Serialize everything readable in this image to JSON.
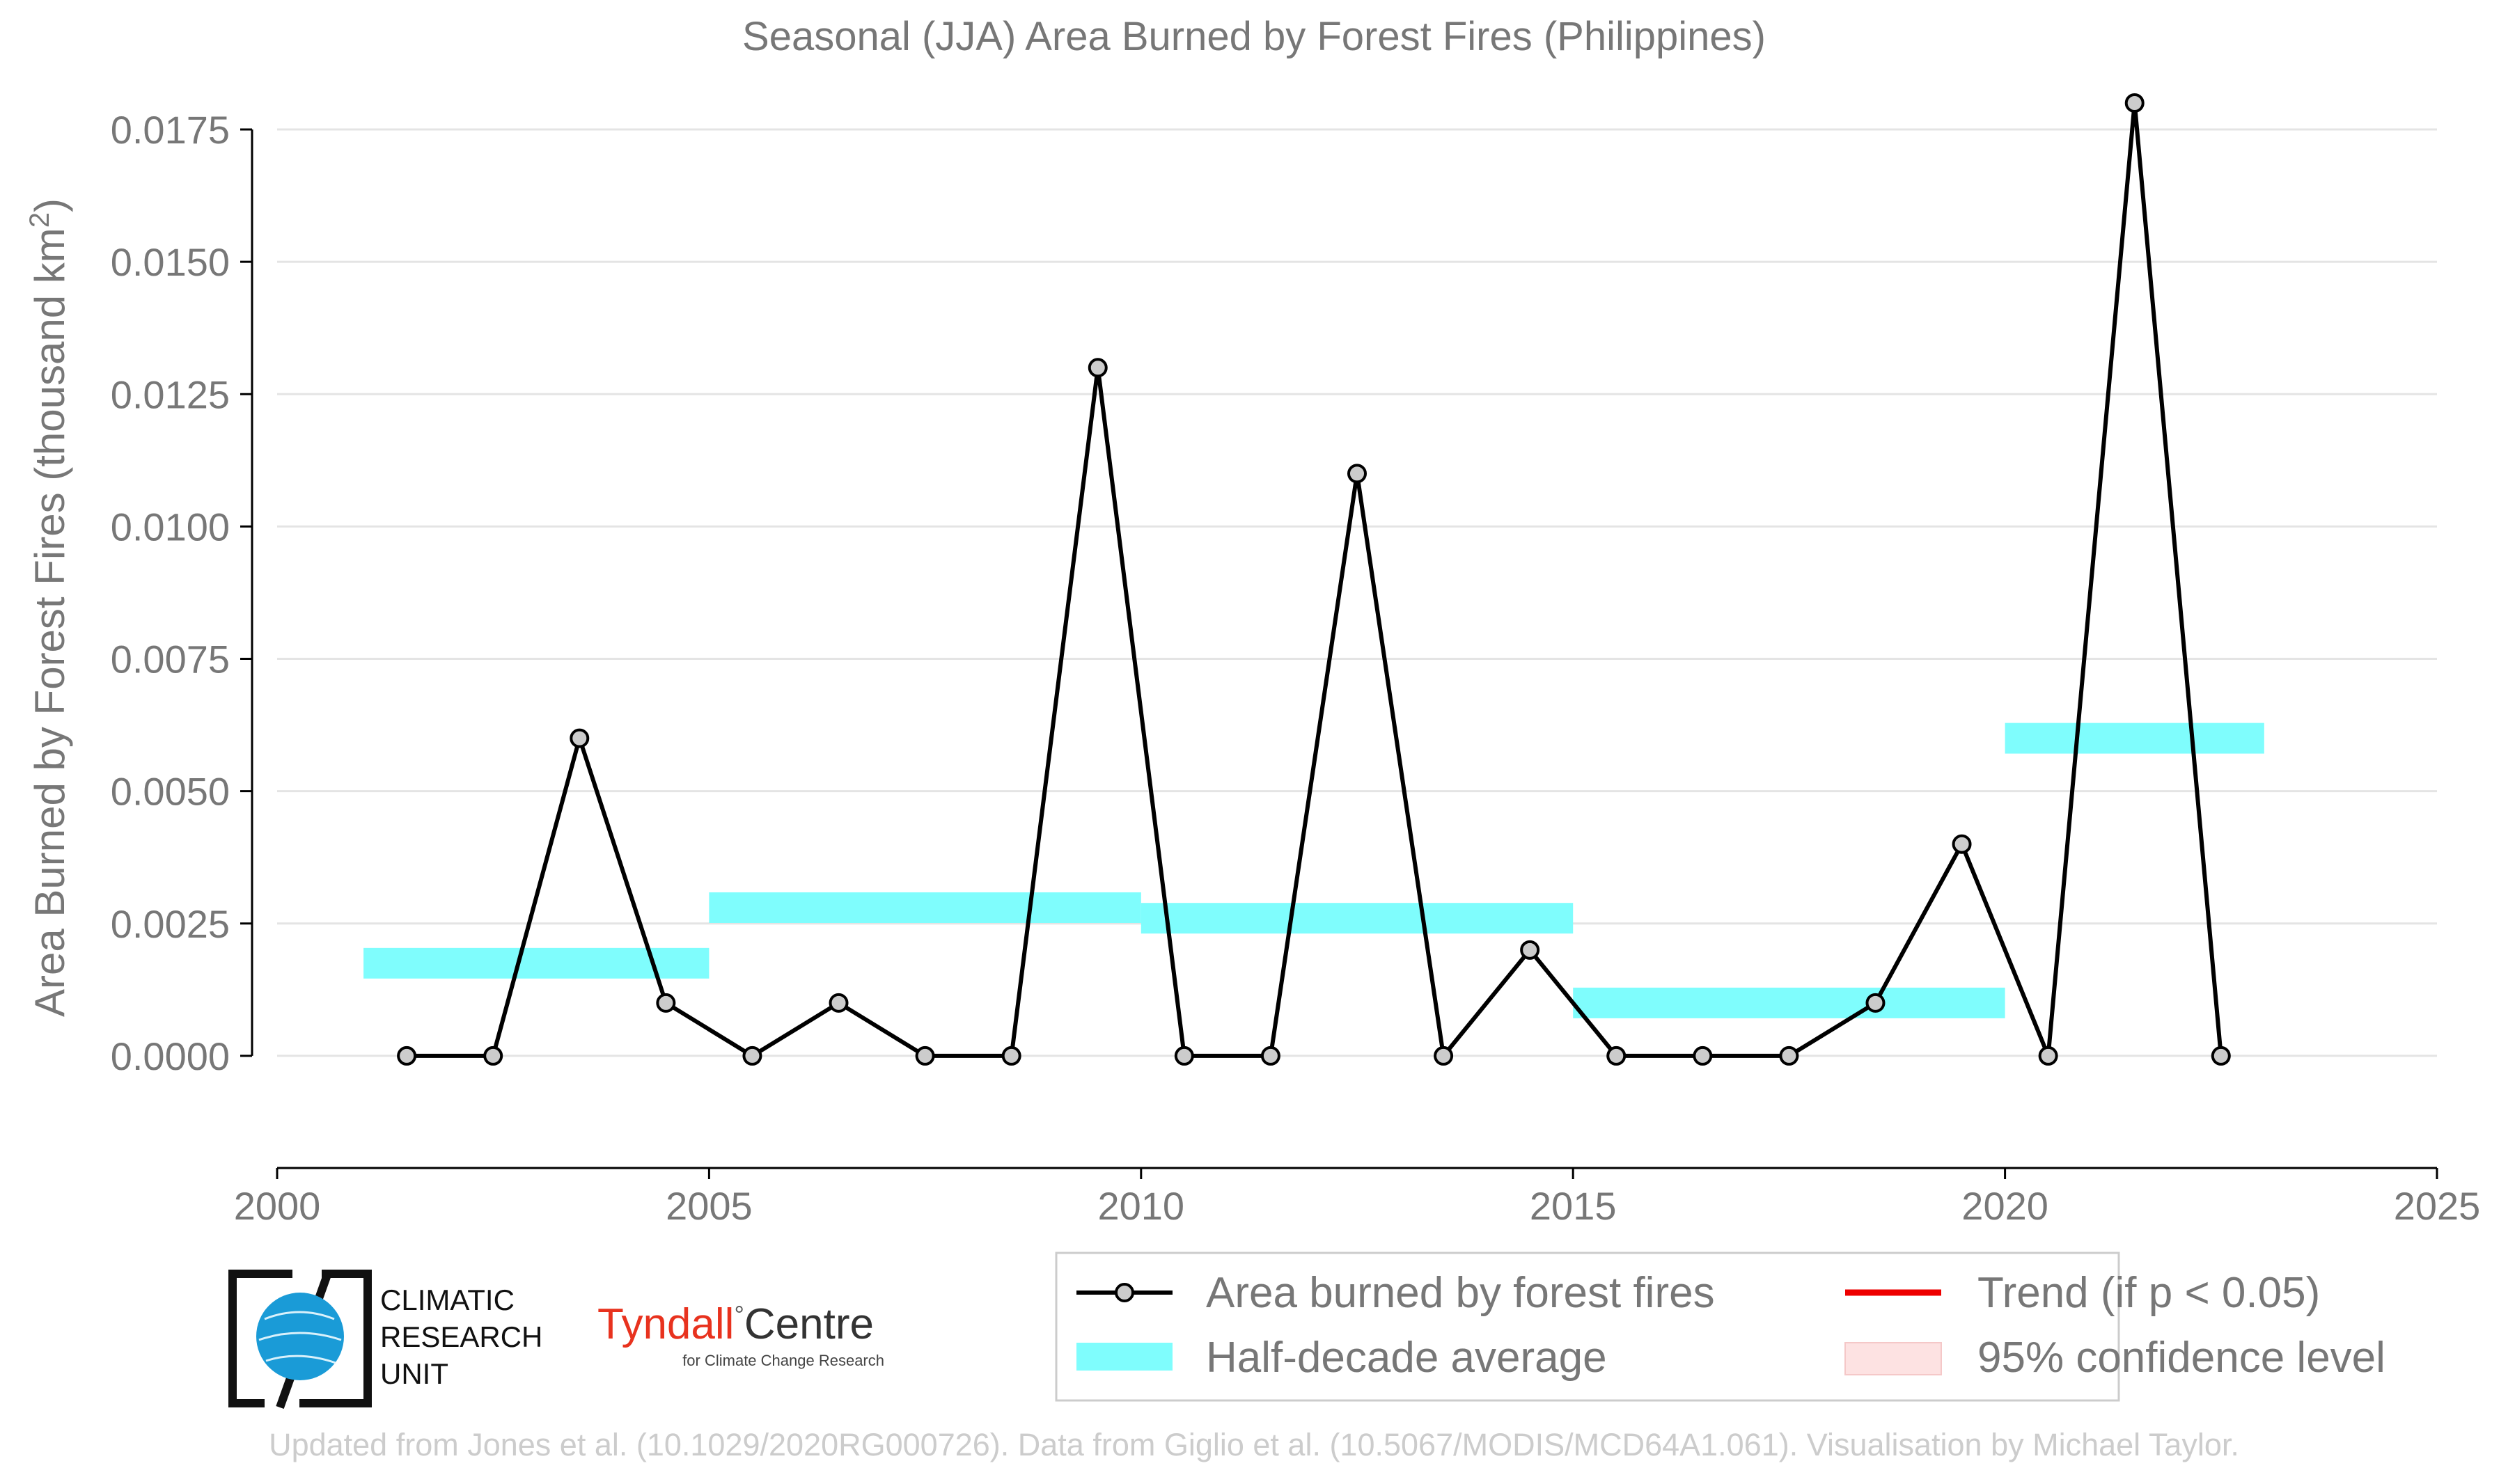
{
  "chart_data": {
    "type": "line",
    "title": "Seasonal (JJA) Area Burned by Forest Fires (Philippines)",
    "ylabel": "Area Burned by Forest Fires (thousand km",
    "ylabel_sup": "2",
    "ylabel_end": ")",
    "xlabel": "",
    "xlim": [
      2000,
      2025
    ],
    "ylim": [
      -0.0015,
      0.0185
    ],
    "x_ticks": [
      "2000",
      "2005",
      "2010",
      "2015",
      "2020",
      "2025"
    ],
    "y_ticks": [
      "0.0000",
      "0.0025",
      "0.0050",
      "0.0075",
      "0.0100",
      "0.0125",
      "0.0150",
      "0.0175"
    ],
    "grid": "horizontal",
    "series": [
      {
        "name": "Area burned by forest fires",
        "color": "#000000",
        "marker_color": "#cccccc",
        "x": [
          2001.5,
          2002.5,
          2003.5,
          2004.5,
          2005.5,
          2006.5,
          2007.5,
          2008.5,
          2009.5,
          2010.5,
          2011.5,
          2012.5,
          2013.5,
          2014.5,
          2015.5,
          2016.5,
          2017.5,
          2018.5,
          2019.5,
          2020.5,
          2021.5,
          2022.5
        ],
        "y": [
          0.0,
          0.0,
          0.006,
          0.001,
          0.0,
          0.001,
          0.0,
          0.0,
          0.013,
          0.0,
          0.0,
          0.011,
          0.0,
          0.002,
          0.0,
          0.0,
          0.0,
          0.001,
          0.004,
          0.0,
          0.018,
          0.0
        ]
      }
    ],
    "half_decade_average": {
      "name": "Half-decade average",
      "color": "#7ffdfd",
      "segments": [
        {
          "x_start": 2001,
          "x_end": 2005,
          "value": 0.00175
        },
        {
          "x_start": 2005,
          "x_end": 2010,
          "value": 0.0028
        },
        {
          "x_start": 2010,
          "x_end": 2015,
          "value": 0.0026
        },
        {
          "x_start": 2015,
          "x_end": 2020,
          "value": 0.001
        },
        {
          "x_start": 2020,
          "x_end": 2023,
          "value": 0.006
        }
      ]
    },
    "legend": {
      "placement": "bottom-right",
      "items": [
        {
          "label": "Area burned by forest fires",
          "kind": "line-marker",
          "color": "#000000"
        },
        {
          "label": "Trend (if p < 0.05)",
          "kind": "line",
          "color": "#ee0000"
        },
        {
          "label": "Half-decade average",
          "kind": "patch",
          "color": "#7ffdfd"
        },
        {
          "label": "95% confidence level",
          "kind": "patch",
          "color": "#fde2e2"
        }
      ]
    }
  },
  "logos": {
    "cru_line1": "CLIMATIC",
    "cru_line2": "RESEARCH",
    "cru_line3": "UNIT",
    "tyndall_name": "Tyndall",
    "tyndall_centre": "Centre",
    "tyndall_sub": "for Climate Change Research"
  },
  "footer": "Updated from Jones et al. (10.1029/2020RG000726). Data from Giglio et al. (10.5067/MODIS/MCD64A1.061). Visualisation by Michael Taylor."
}
